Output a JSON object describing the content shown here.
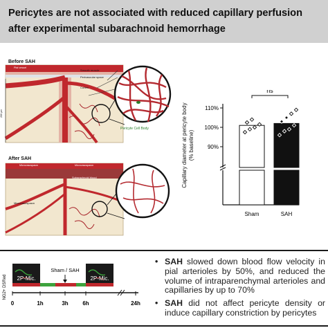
{
  "title": {
    "line1": "Pericytes are not associated with reduced capillary perfusion",
    "line2": "after experimental subarachnoid hemorrhage"
  },
  "left_diagram": {
    "before_label": "Before SAH",
    "after_label": "After SAH",
    "pial_vessel_label": "Pial vessel",
    "smooth_muscle_label": "Smooth muscle",
    "perivascular_space_label": "Perivascular space",
    "cortex_label": "Cortex",
    "pericyte_label": "Pericyte Cell Body",
    "scale_label": "200 µm",
    "vasospasm_label_1": "Microvasospasm",
    "vasospasm_label_2": "Microvasospasm",
    "subarachnoid_blood_label": "Subarachnoid blood",
    "microvasospasm_label": "Microvasospasm",
    "colors": {
      "vessel": "#c0282d",
      "tissue": "#f2e7cf",
      "dark_vessel": "#8b1a1e"
    }
  },
  "chart_data": {
    "type": "bar",
    "categories": [
      "Sham",
      "SAH"
    ],
    "values": [
      101,
      102
    ],
    "points": [
      [
        97.5,
        99,
        100,
        101.5,
        102.5,
        104
      ],
      [
        96,
        98,
        99,
        101,
        103,
        105,
        107,
        109
      ]
    ],
    "ylabel_lines": [
      "Capillary diameter at pericyte body",
      "(% baseline)"
    ],
    "yticks": [
      "90%",
      "100%",
      "110%"
    ],
    "ylim": [
      85,
      112
    ],
    "significance": "ns",
    "bar_fills": [
      "#ffffff",
      "#111111"
    ]
  },
  "timeline": {
    "side_label": "NG2+ DSRed",
    "mic_label_1": "2P-Mic.",
    "mic_label_2": "2P-Mic.",
    "event_label": "Sham / SAH",
    "ticks": [
      "0",
      "1h",
      "3h",
      "6h",
      "24h"
    ]
  },
  "summary": {
    "bullet_symbol": "•",
    "item1_bold": "SAH",
    "item1_text": " slowed down blood flow velocity in pial arterioles by 50%, and reduced the volume of intraparenchymal arterioles and capillaries by up to 70%",
    "item2_bold": "SAH",
    "item2_text": " did not affect pericyte density or induce capillary constriction by pericytes"
  }
}
